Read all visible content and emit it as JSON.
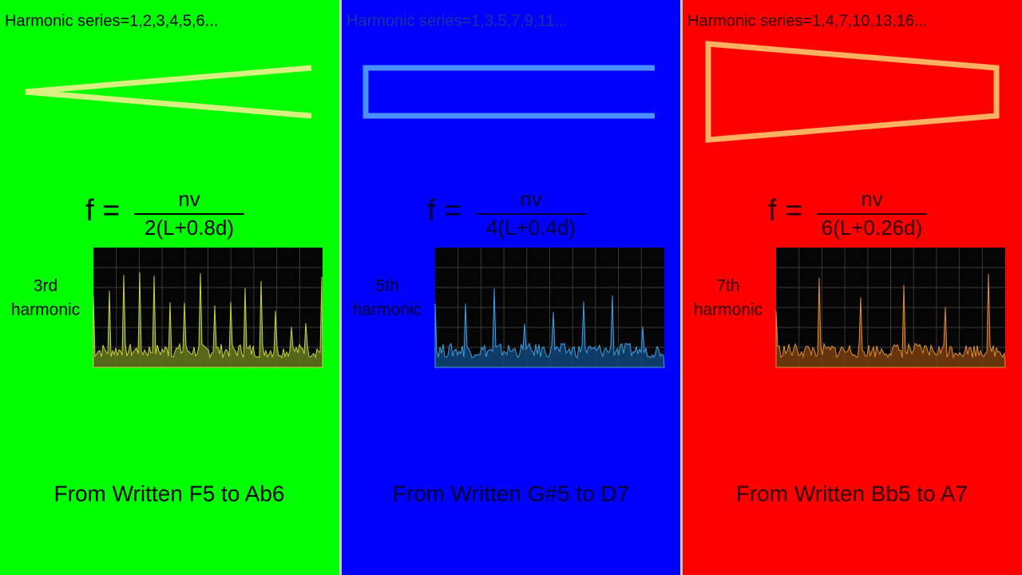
{
  "panels": [
    {
      "series": "Harmonic series=1,2,3,4,5,6...",
      "f": "f =",
      "numerator": "nv",
      "denominator": "2(L+0.8d)",
      "harmonic": [
        "3rd",
        "harmonic"
      ],
      "caption": "From Written F5 to Ab6"
    },
    {
      "series": "Harmonic series=1,3,5,7,9,11...",
      "f": "f =",
      "numerator": "nv",
      "denominator": "4(L+0.4d)",
      "harmonic": [
        "5th",
        "harmonic"
      ],
      "caption": "From Written G#5 to D7"
    },
    {
      "series": "Harmonic series=1,4,7,10,13,16...",
      "f": "f =",
      "numerator": "nv",
      "denominator": "6(L+0.26d)",
      "harmonic": [
        "7th",
        "harmonic"
      ],
      "caption": "From Written Bb5 to A7"
    }
  ]
}
